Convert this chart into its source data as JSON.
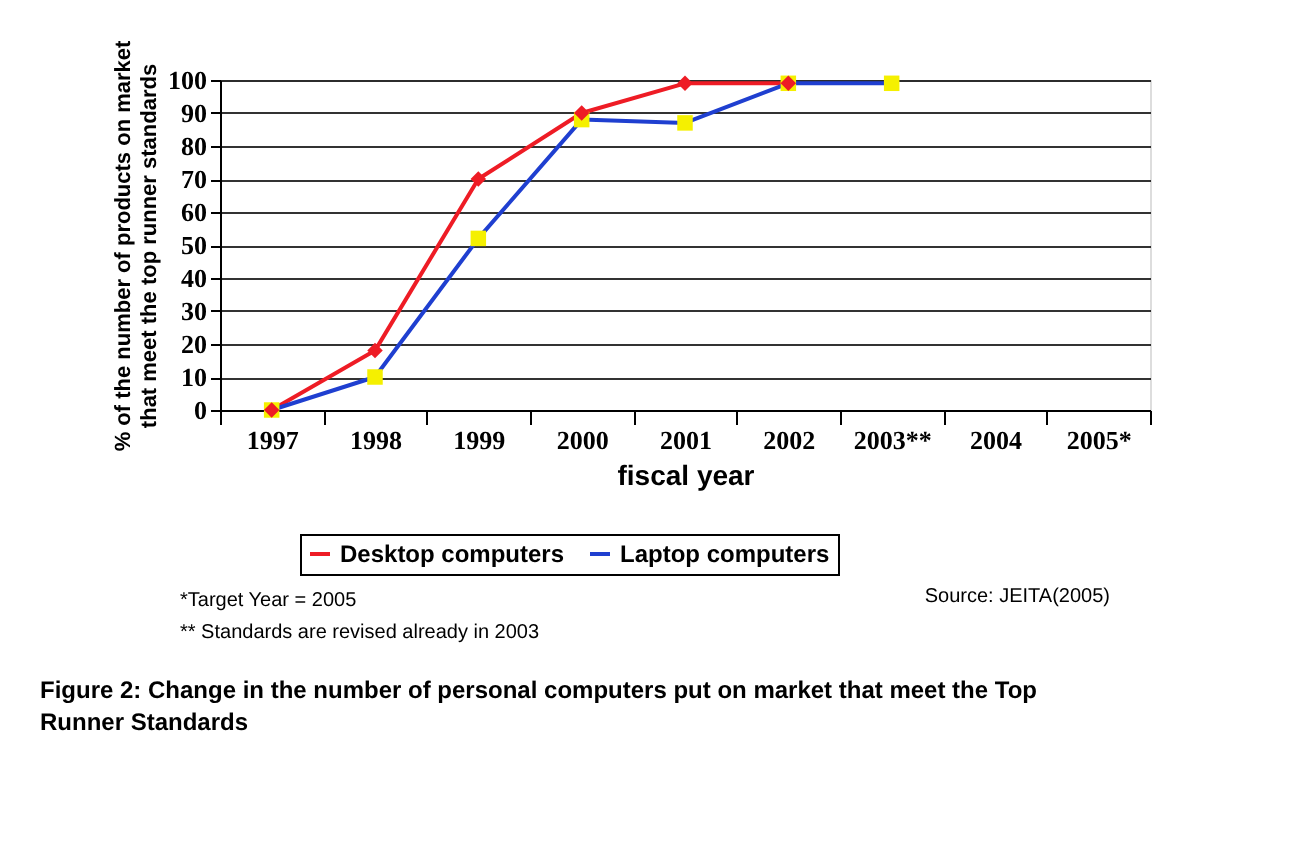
{
  "chart_data": {
    "type": "line",
    "categories": [
      "1997",
      "1998",
      "1999",
      "2000",
      "2001",
      "2002",
      "2003**",
      "2004",
      "2005*"
    ],
    "xlabel": "fiscal year",
    "ylabel": "% of the number of products on market that meet the top runner standards",
    "ylim": [
      0,
      100
    ],
    "yticks": [
      0,
      10,
      20,
      30,
      40,
      50,
      60,
      70,
      80,
      90,
      100
    ],
    "grid": "y",
    "legend": "bottom",
    "line_style": "solid",
    "series": [
      {
        "name": "Desktop computers",
        "color": "#ee1c25",
        "marker": "diamond",
        "values": [
          0,
          18,
          70,
          90,
          99,
          99,
          null,
          null,
          null
        ]
      },
      {
        "name": "Laptop computers",
        "color": "#1f3fd0",
        "marker": "square",
        "colors": [
          "#f5f000",
          "#f5f000",
          "#f5f000",
          "#f5f000",
          "#f5f000",
          "#f5f000",
          "#f5f000",
          null,
          null
        ],
        "values": [
          0,
          10,
          52,
          88,
          87,
          99,
          99,
          null,
          null
        ]
      }
    ],
    "annotations": [
      "*Target Year = 2005",
      "** Standards are revised already in 2003",
      "Source: JEITA(2005)",
      "Figure 2: Change in the number of personal computers put on market that meet the Top Runner Standards"
    ]
  }
}
